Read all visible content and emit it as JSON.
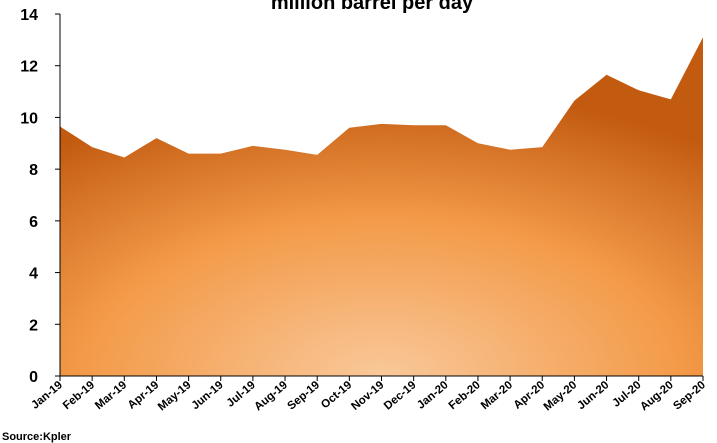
{
  "chart_data": {
    "type": "area",
    "title": "million barrel per day",
    "categories": [
      "Jan-19",
      "Feb-19",
      "Mar-19",
      "Apr-19",
      "May-19",
      "Jun-19",
      "Jul-19",
      "Aug-19",
      "Sep-19",
      "Oct-19",
      "Nov-19",
      "Dec-19",
      "Jan-20",
      "Feb-20",
      "Mar-20",
      "Apr-20",
      "May-20",
      "Jun-20",
      "Jul-20",
      "Aug-20",
      "Sep-20"
    ],
    "series": [
      {
        "values": [
          9.65,
          8.85,
          8.45,
          9.2,
          8.6,
          8.6,
          8.9,
          8.75,
          8.55,
          9.6,
          9.75,
          9.7,
          9.7,
          9.0,
          8.75,
          8.85,
          10.65,
          11.65,
          11.05,
          10.7,
          13.1
        ]
      }
    ],
    "ylim": [
      0,
      14
    ],
    "yticks": [
      "0",
      "2",
      "4",
      "6",
      "8",
      "10",
      "12",
      "14"
    ],
    "grid": false,
    "colors": {
      "fill_center": "#f9c89a",
      "fill_mid": "#f39a48",
      "fill_edge": "#c25a10"
    }
  },
  "footer": {
    "source": "Source:Kpler"
  }
}
